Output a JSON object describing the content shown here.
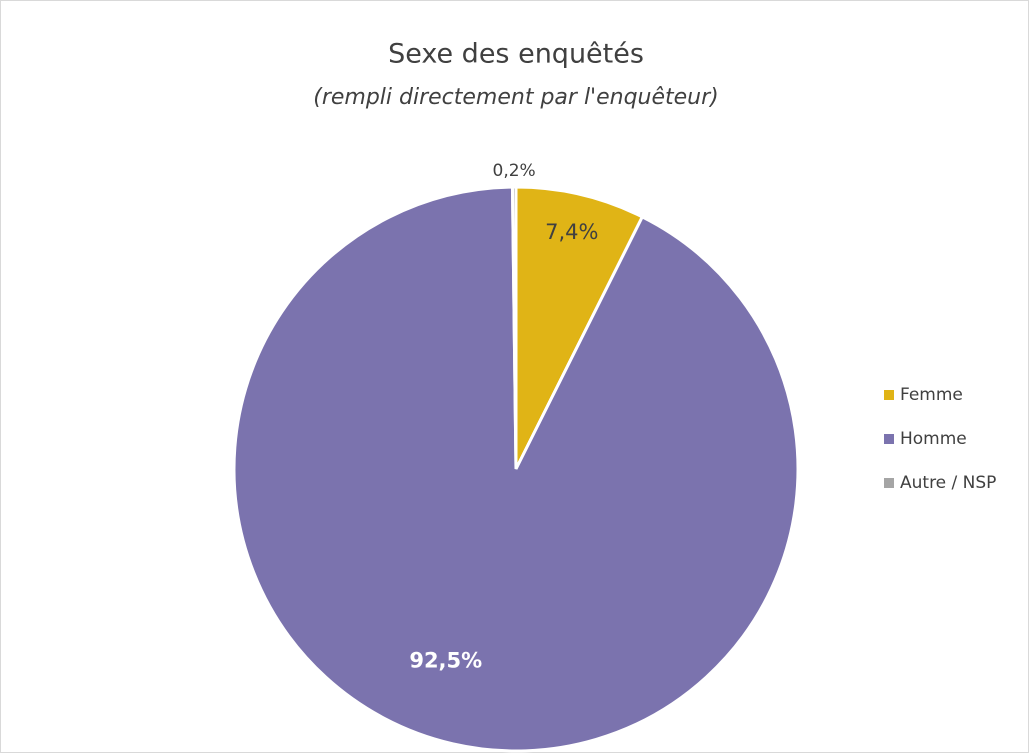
{
  "chart_data": {
    "type": "pie",
    "title": "Sexe des enquêtés",
    "subtitle": "(rempli directement par l'enquêteur)",
    "categories": [
      "Femme",
      "Homme",
      "Autre / NSP"
    ],
    "values": [
      7.4,
      92.5,
      0.2
    ],
    "value_labels": [
      "7,4%",
      "92,5%",
      "0,2%"
    ],
    "colors": [
      "#e0b416",
      "#7b73ae",
      "#a5a5a5"
    ],
    "legend": "right"
  }
}
